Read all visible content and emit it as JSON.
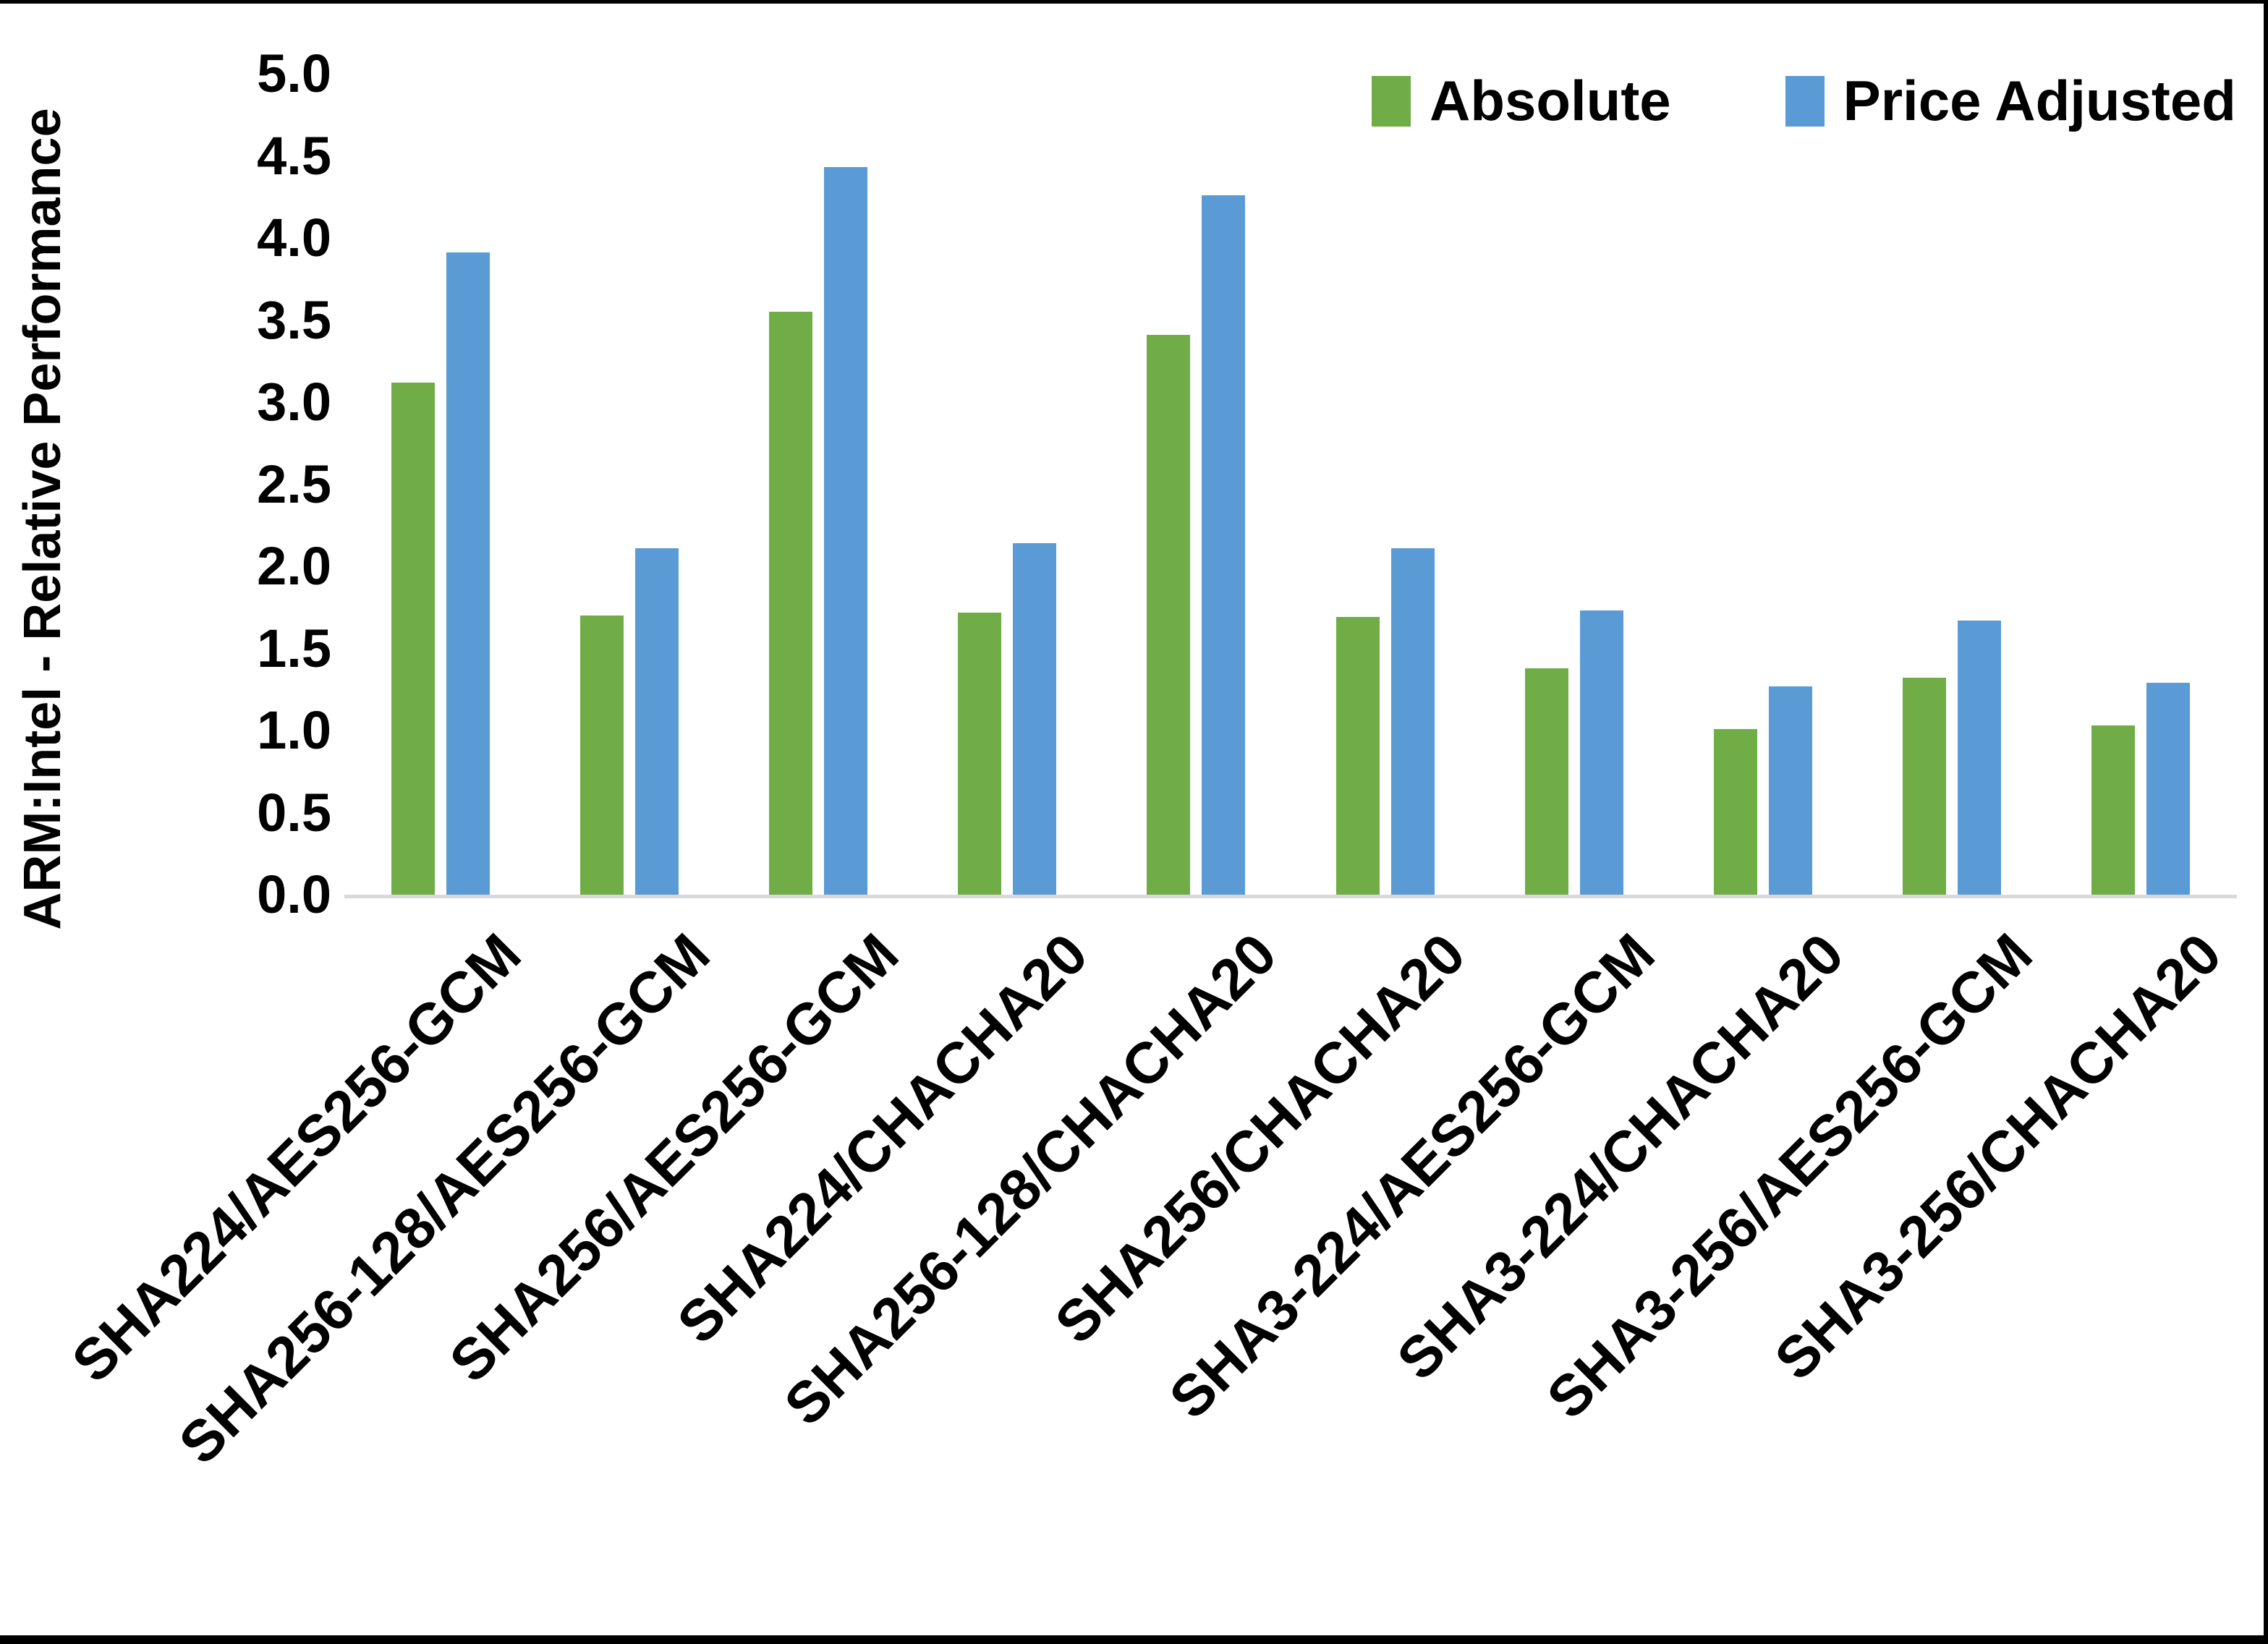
{
  "chart_data": {
    "type": "bar",
    "title": "",
    "xlabel": "",
    "ylabel": "ARM:Intel - Relative Performance",
    "ylim": [
      0.0,
      5.0
    ],
    "ytick_step": 0.5,
    "yticks": [
      "5.0",
      "4.5",
      "4.0",
      "3.5",
      "3.0",
      "2.5",
      "2.0",
      "1.5",
      "1.0",
      "0.5",
      "0.0"
    ],
    "grid": false,
    "legend_position": "top-right",
    "axis_line_color": "#d9d9d9",
    "categories": [
      "SHA224/AES256-GCM",
      "SHA256-128/AES256-GCM",
      "SHA256/AES256-GCM",
      "SHA224/CHACHA20",
      "SHA256-128/CHACHA20",
      "SHA256/CHACHA20",
      "SHA3-224/AES256-GCM",
      "SHA3-224/CHACHA20",
      "SHA3-256/AES256-GCM",
      "SHA3-256/CHACHA20"
    ],
    "series": [
      {
        "name": "Absolute",
        "color": "#70ad47",
        "values": [
          3.12,
          1.7,
          3.55,
          1.72,
          3.41,
          1.69,
          1.38,
          1.01,
          1.32,
          1.03
        ]
      },
      {
        "name": "Price Adjusted",
        "color": "#5b9bd5",
        "values": [
          3.91,
          2.11,
          4.43,
          2.14,
          4.26,
          2.11,
          1.73,
          1.27,
          1.67,
          1.29
        ]
      }
    ]
  }
}
